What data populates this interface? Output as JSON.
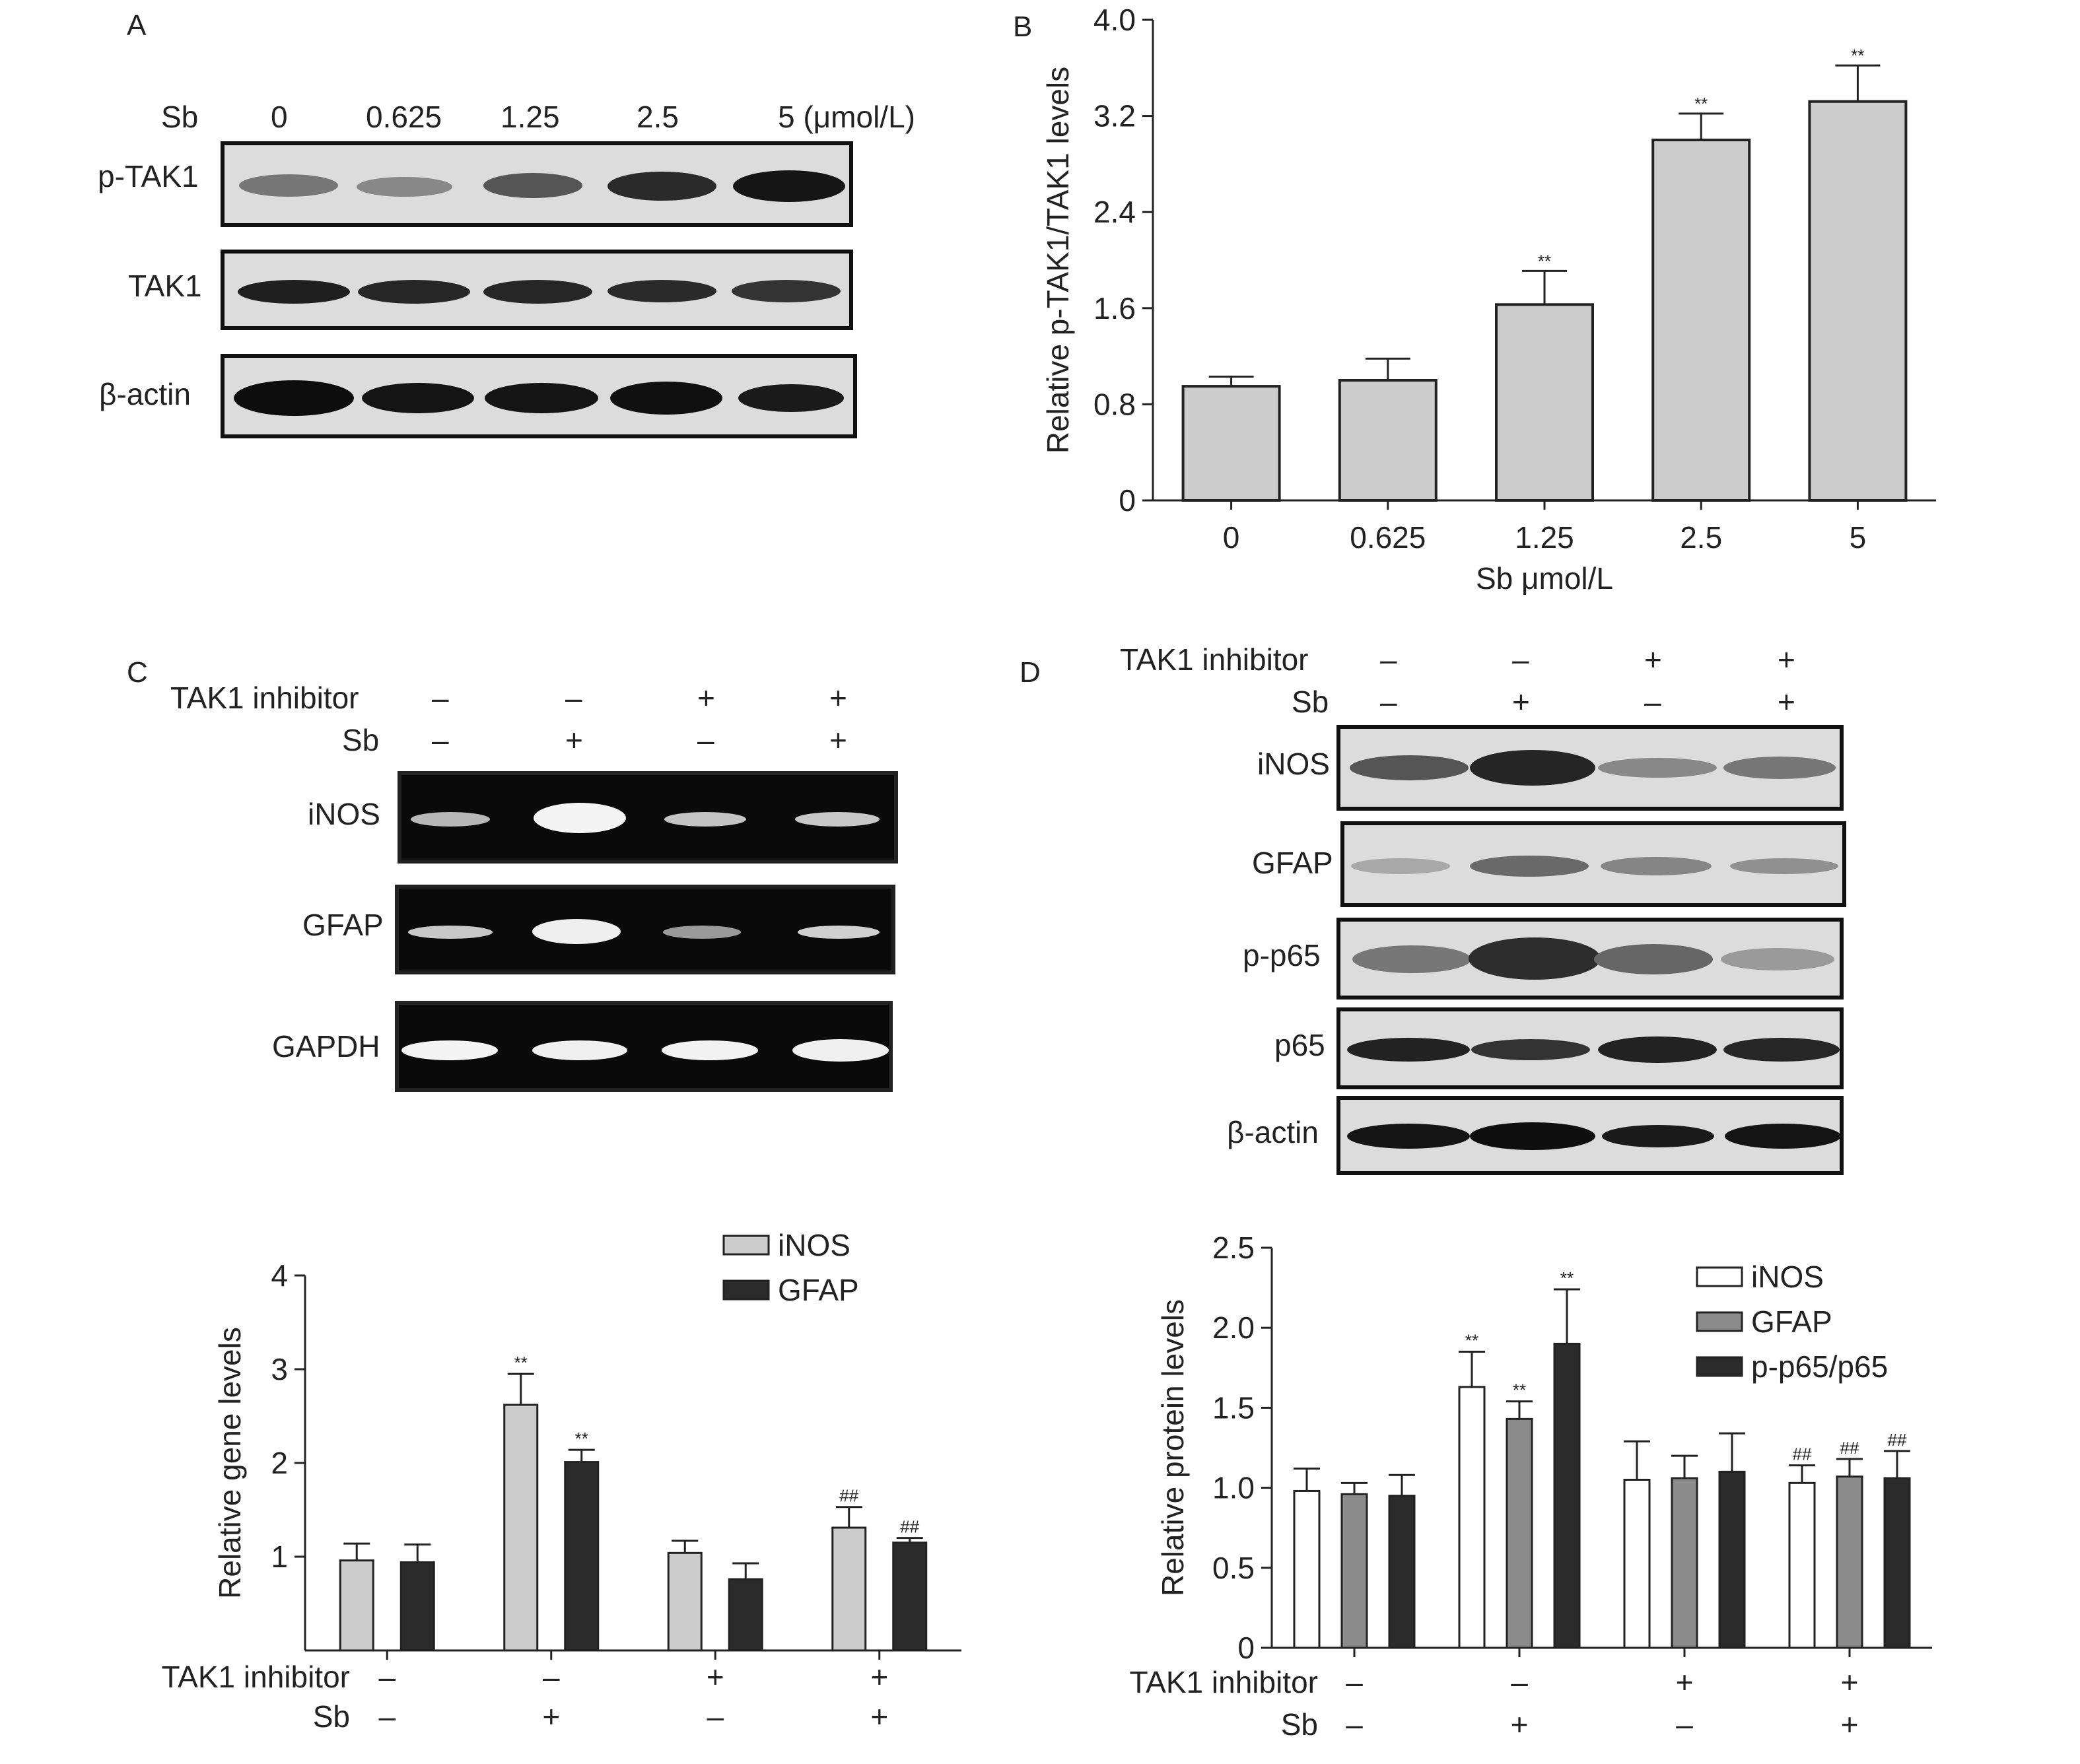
{
  "panels": {
    "a": {
      "letter": "A",
      "header_label": "Sb",
      "lane_labels": [
        "0",
        "0.625",
        "1.25",
        "2.5",
        "5 (μmol/L)"
      ],
      "rows": [
        "p-TAK1",
        "TAK1",
        "β-actin"
      ]
    },
    "b": {
      "letter": "B"
    },
    "c": {
      "letter": "C",
      "treatments": [
        {
          "label": "TAK1 inhibitor",
          "values": [
            "–",
            "–",
            "+",
            "+"
          ]
        },
        {
          "label": "Sb",
          "values": [
            "–",
            "+",
            "–",
            "+"
          ]
        }
      ],
      "rows": [
        "iNOS",
        "GFAP",
        "GAPDH"
      ]
    },
    "d": {
      "letter": "D",
      "treatments": [
        {
          "label": "TAK1 inhibitor",
          "values": [
            "–",
            "–",
            "+",
            "+"
          ]
        },
        {
          "label": "Sb",
          "values": [
            "–",
            "+",
            "–",
            "+"
          ]
        }
      ],
      "rows": [
        "iNOS",
        "GFAP",
        "p-p65",
        "p65",
        "β-actin"
      ]
    }
  },
  "colors": {
    "bar_light": "#cccccc",
    "bar_dark": "#2b2b2b",
    "bar_mid": "#8c8c8c",
    "bar_white": "#ffffff",
    "axis": "#222222"
  },
  "chart_data": [
    {
      "id": "panel-b",
      "type": "bar",
      "categories": [
        "0",
        "0.625",
        "1.25",
        "2.5",
        "5"
      ],
      "series": [
        {
          "values": [
            0.95,
            1.0,
            1.63,
            3.0,
            3.32
          ],
          "errors": [
            0.08,
            0.18,
            0.28,
            0.22,
            0.3
          ]
        }
      ],
      "significance": [
        "",
        "",
        "**",
        "**",
        "**"
      ],
      "xlabel": "Sb μmol/L",
      "ylabel": "Relative p-TAK1/TAK1 levels",
      "ylim": [
        0,
        4.0
      ],
      "yticks": [
        "0",
        "0.8",
        "1.6",
        "2.4",
        "3.2",
        "4.0"
      ],
      "legend": "none",
      "grid": false
    },
    {
      "id": "panel-c",
      "type": "bar",
      "groups": 4,
      "treatments": [
        {
          "label": "TAK1 inhibitor",
          "values": [
            "–",
            "–",
            "+",
            "+"
          ]
        },
        {
          "label": "Sb",
          "values": [
            "–",
            "+",
            "–",
            "+"
          ]
        }
      ],
      "series": [
        {
          "name": "iNOS",
          "color": "#cccccc",
          "values": [
            0.96,
            2.62,
            1.04,
            1.31
          ],
          "errors": [
            0.18,
            0.33,
            0.13,
            0.22
          ],
          "marks": [
            "",
            "**",
            "",
            "##"
          ]
        },
        {
          "name": "GFAP",
          "color": "#2b2b2b",
          "values": [
            0.94,
            2.01,
            0.76,
            1.15
          ],
          "errors": [
            0.19,
            0.13,
            0.17,
            0.05
          ],
          "marks": [
            "",
            "**",
            "",
            "##"
          ]
        }
      ],
      "ylabel": "Relative gene levels",
      "ylim": [
        0,
        4
      ],
      "yticks": [
        "1",
        "2",
        "3",
        "4"
      ],
      "legend": "top-right",
      "grid": false
    },
    {
      "id": "panel-d",
      "type": "bar",
      "groups": 4,
      "treatments": [
        {
          "label": "TAK1 inhibitor",
          "values": [
            "–",
            "–",
            "+",
            "+"
          ]
        },
        {
          "label": "Sb",
          "values": [
            "–",
            "+",
            "–",
            "+"
          ]
        }
      ],
      "series": [
        {
          "name": "iNOS",
          "color": "#ffffff",
          "values": [
            0.98,
            1.63,
            1.05,
            1.03
          ],
          "errors": [
            0.14,
            0.22,
            0.24,
            0.11
          ],
          "marks": [
            "",
            "**",
            "",
            "##"
          ]
        },
        {
          "name": "GFAP",
          "color": "#8c8c8c",
          "values": [
            0.96,
            1.43,
            1.06,
            1.07
          ],
          "errors": [
            0.07,
            0.11,
            0.14,
            0.11
          ],
          "marks": [
            "",
            "**",
            "",
            "##"
          ]
        },
        {
          "name": "p-p65/p65",
          "color": "#2b2b2b",
          "values": [
            0.95,
            1.9,
            1.1,
            1.06
          ],
          "errors": [
            0.13,
            0.34,
            0.24,
            0.17
          ],
          "marks": [
            "",
            "**",
            "",
            "##"
          ]
        }
      ],
      "ylabel": "Relative protein levels",
      "ylim": [
        0,
        2.5
      ],
      "yticks": [
        "0",
        "0.5",
        "1.0",
        "1.5",
        "2.0",
        "2.5"
      ],
      "legend": "top-right",
      "grid": false
    }
  ]
}
